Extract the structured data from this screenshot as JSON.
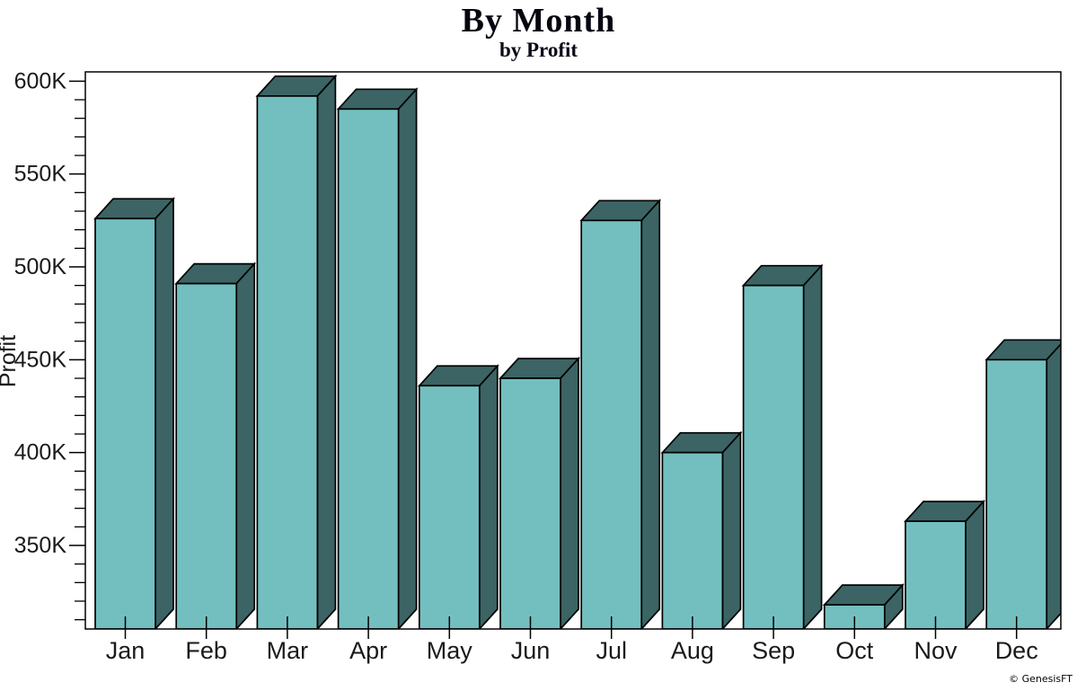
{
  "header": {
    "title": "By Month",
    "subtitle": "by Profit"
  },
  "watermark": "© GenesisFT",
  "chart_data": {
    "type": "bar",
    "style": "3d",
    "title": "By Month",
    "subtitle": "by Profit",
    "xlabel": "",
    "ylabel": "Profit",
    "legend": "none",
    "grid": "off",
    "categories": [
      "Jan",
      "Feb",
      "Mar",
      "Apr",
      "May",
      "Jun",
      "Jul",
      "Aug",
      "Sep",
      "Oct",
      "Nov",
      "Dec"
    ],
    "series": [
      {
        "name": "Profit",
        "values": [
          526000,
          491000,
          592000,
          585000,
          436000,
          440000,
          525000,
          400000,
          490000,
          318000,
          363000,
          450000
        ]
      }
    ],
    "y_axis": {
      "min": 305000,
      "max": 605000,
      "minor_tick_step": 10000,
      "major_ticks": [
        {
          "value": 350000,
          "label": "350K"
        },
        {
          "value": 400000,
          "label": "400K"
        },
        {
          "value": 450000,
          "label": "450K"
        },
        {
          "value": 500000,
          "label": "500K"
        },
        {
          "value": 550000,
          "label": "550K"
        },
        {
          "value": 600000,
          "label": "600K"
        }
      ]
    },
    "colors": {
      "bar_front": "#73BFC0",
      "bar_dark": "#3C6464",
      "outline": "#000000",
      "axis": "#000000",
      "text": "#1a1a1a"
    }
  }
}
